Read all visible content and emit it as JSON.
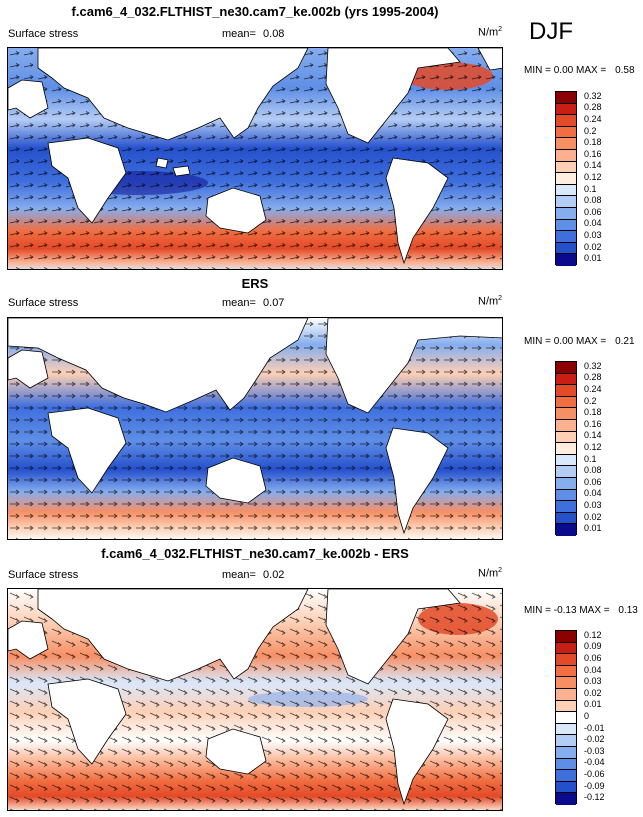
{
  "page": {
    "season": "DJF"
  },
  "panels": [
    {
      "title": "f.cam6_4_032.FLTHIST_ne30.cam7_ke.002b (yrs 1995-2004)",
      "variable": "Surface stress",
      "mean_label": "mean=",
      "mean": "0.08",
      "units": "N/m",
      "units_sup": "2",
      "min_label": "MIN =",
      "min": "0.00",
      "max_label": "MAX =",
      "max": "0.58",
      "levels": [
        "0.32",
        "0.28",
        "0.24",
        "0.2",
        "0.18",
        "0.16",
        "0.14",
        "0.12",
        "0.1",
        "0.08",
        "0.06",
        "0.04",
        "0.03",
        "0.02",
        "0.01"
      ]
    },
    {
      "title": "ERS",
      "variable": "Surface stress",
      "mean_label": "mean=",
      "mean": "0.07",
      "units": "N/m",
      "units_sup": "2",
      "min_label": "MIN =",
      "min": "0.00",
      "max_label": "MAX =",
      "max": "0.21",
      "levels": [
        "0.32",
        "0.28",
        "0.24",
        "0.2",
        "0.18",
        "0.16",
        "0.14",
        "0.12",
        "0.1",
        "0.08",
        "0.06",
        "0.04",
        "0.03",
        "0.02",
        "0.01"
      ]
    },
    {
      "title": "f.cam6_4_032.FLTHIST_ne30.cam7_ke.002b - ERS",
      "variable": "Surface stress",
      "mean_label": "mean=",
      "mean": "0.02",
      "units": "N/m",
      "units_sup": "2",
      "min_label": "MIN =",
      "min": "-0.13",
      "max_label": "MAX =",
      "max": "0.13",
      "levels": [
        "0.12",
        "0.09",
        "0.06",
        "0.04",
        "0.03",
        "0.02",
        "0.01",
        "0",
        "-0.01",
        "-0.02",
        "-0.03",
        "-0.04",
        "-0.06",
        "-0.09",
        "-0.12"
      ]
    }
  ],
  "colors": {
    "abs_scale": [
      "#8b0000",
      "#c81e14",
      "#e34a28",
      "#f06e41",
      "#f78f64",
      "#fbb08f",
      "#fdd0b6",
      "#fdeedd",
      "#dae8fb",
      "#b4cdf5",
      "#86adee",
      "#5f8ee6",
      "#3f6fdd",
      "#2550cc",
      "#0a0a8c"
    ],
    "diff_scale": [
      "#8b0000",
      "#c81e14",
      "#e34a28",
      "#f06e41",
      "#f78f64",
      "#fbb08f",
      "#fdd0b6",
      "#ffffff",
      "#dae8fb",
      "#b4cdf5",
      "#86adee",
      "#5f8ee6",
      "#3f6fdd",
      "#2550cc",
      "#0a0a8c"
    ]
  }
}
